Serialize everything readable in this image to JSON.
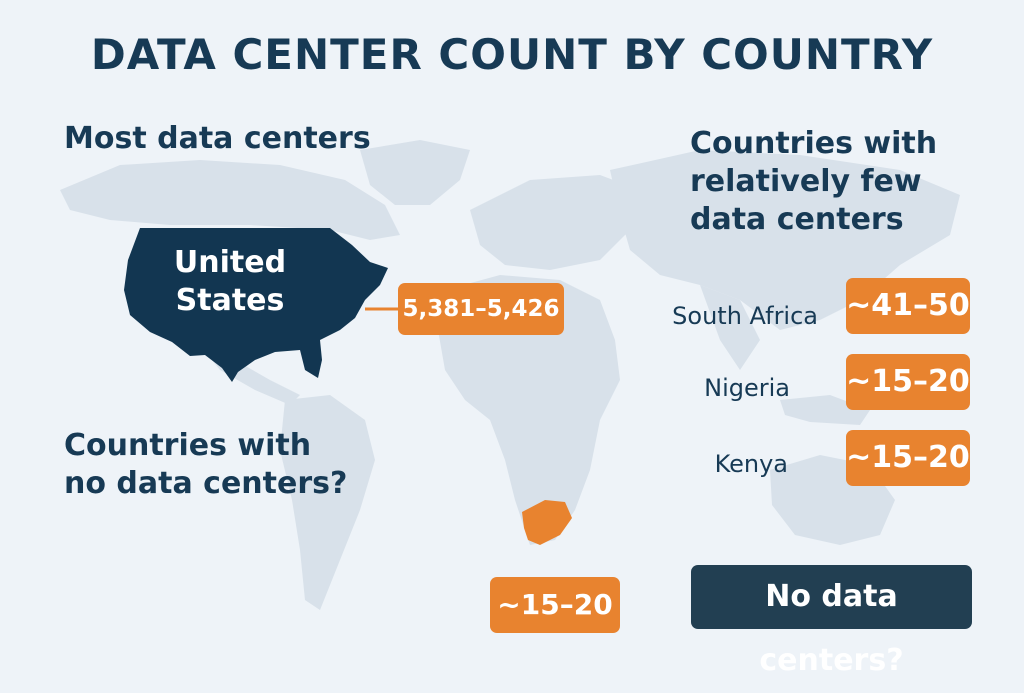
{
  "title": "DATA CENTER COUNT BY COUNTRY",
  "colors": {
    "background": "#eef3f8",
    "land": "#d8e1ea",
    "united_states": "#123651",
    "highlight_orange": "#e8832f",
    "heading_text": "#173a55",
    "dark_badge": "#223f52"
  },
  "most": {
    "heading": "Most data centers",
    "country_line1": "United",
    "country_line2": "States",
    "count": "5,381–5,426"
  },
  "few": {
    "heading_line1": "Countries with",
    "heading_line2": "relatively few",
    "heading_line3": "data centers",
    "items": [
      {
        "country": "South Africa",
        "count": "~41–50"
      },
      {
        "country": "Nigeria",
        "count": "~15–20"
      },
      {
        "country": "Kenya",
        "count": "~15–20"
      }
    ]
  },
  "none": {
    "heading_line1": "Countries with",
    "heading_line2": "no data centers?",
    "africa_count": "~15–20",
    "label": "No data centers?"
  }
}
